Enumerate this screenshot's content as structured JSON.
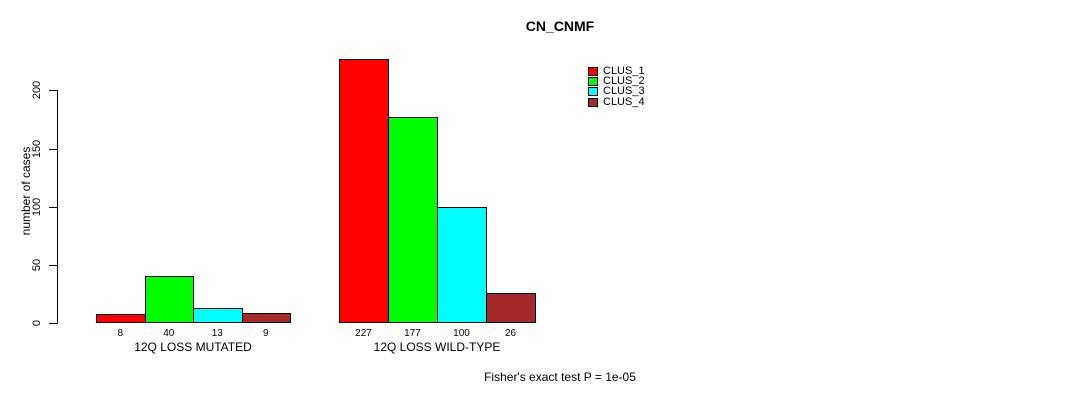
{
  "figure": {
    "title": "CN_CNMF",
    "y_axis_label": "number of cases",
    "annotation": "Fisher's exact test P = 1e-05"
  },
  "legend": {
    "entries": [
      {
        "label": "CLUS_1",
        "color": "#ff0000"
      },
      {
        "label": "CLUS_2",
        "color": "#00ff00"
      },
      {
        "label": "CLUS_3",
        "color": "#00ffff"
      },
      {
        "label": "CLUS_4",
        "color": "#a52a2a"
      }
    ]
  },
  "chart_data": {
    "type": "bar",
    "title": "CN_CNMF",
    "xlabel": "",
    "ylabel": "number of cases",
    "categories": [
      "12Q LOSS MUTATED",
      "12Q LOSS WILD-TYPE"
    ],
    "series": [
      {
        "name": "CLUS_1",
        "color": "#ff0000",
        "values": [
          8,
          227
        ]
      },
      {
        "name": "CLUS_2",
        "color": "#00ff00",
        "values": [
          40,
          177
        ]
      },
      {
        "name": "CLUS_3",
        "color": "#00ffff",
        "values": [
          13,
          100
        ]
      },
      {
        "name": "CLUS_4",
        "color": "#a52a2a",
        "values": [
          9,
          26
        ]
      }
    ],
    "yticks": [
      0,
      50,
      100,
      150,
      200
    ],
    "ylim": [
      0,
      230
    ],
    "grid": false,
    "bar_borders": "#000000",
    "value_labels_under_bars": true,
    "legend_position": "top, right of plot center",
    "annotation": "Fisher's exact test P = 1e-05"
  }
}
